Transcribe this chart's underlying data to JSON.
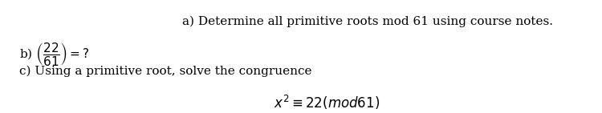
{
  "bg_color": "#ffffff",
  "text_color": "#000000",
  "line_a": "a) Determine all primitive roots mod 61 using course notes.",
  "line_b_prefix": "b) ",
  "line_b_fraction_num": "22",
  "line_b_fraction_den": "61",
  "line_b_suffix": " =?",
  "line_c": "c) Using a primitive root, solve the congruence",
  "line_eq": "$x^2 \\equiv 22(mod61)$",
  "font_size_main": 11,
  "font_size_eq": 12,
  "fig_width": 7.5,
  "fig_height": 1.41
}
